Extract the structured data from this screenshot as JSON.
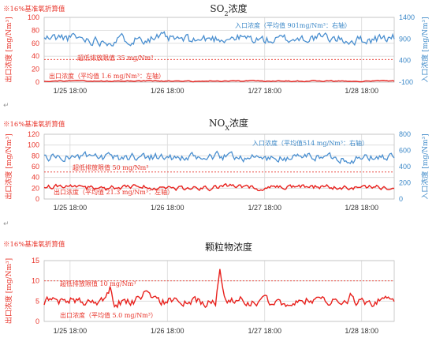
{
  "note_label": "※16%基准氧折算值",
  "return_mark": "↵",
  "colors": {
    "inlet": "#4a8fd0",
    "outlet": "#e8201c",
    "limit": "#e8342a",
    "grid": "#d9d9d9"
  },
  "chart_data": [
    {
      "type": "line",
      "title_main": "SO",
      "title_sub": "2",
      "title_rest": "浓度",
      "x_ticks": [
        "1/25 18:00",
        "1/26 18:00",
        "1/27 18:00",
        "1/28 18:00"
      ],
      "ylabel_left": "出口浓度 [mg/Nm³]",
      "ylabel_right": "入口浓度 [mg/Nm³]",
      "ylim": [
        0,
        100
      ],
      "yticks": [
        0,
        20,
        40,
        60,
        80,
        100
      ],
      "y2lim": [
        -100,
        1400
      ],
      "y2ticks": [
        -100,
        400,
        900,
        1400
      ],
      "grid": true,
      "series": [
        {
          "name": "入口浓度（平均值 901mg/Nm³：右轴）",
          "axis": "right",
          "mean": 901,
          "amp": 120
        },
        {
          "name": "出口浓度（平均值 1.6 mg/Nm³：左轴）",
          "axis": "left",
          "mean": 1.6,
          "amp": 0.8
        }
      ],
      "limit": {
        "label": "超低排放限值 35 mg/Nm³",
        "value": 35
      }
    },
    {
      "type": "line",
      "title_main": "NO",
      "title_sub": "X",
      "title_rest": "浓度",
      "x_ticks": [
        "1/25 18:00",
        "1/26 18:00",
        "1/27 18:00",
        "1/28 18:00"
      ],
      "ylabel_left": "出口浓度 [mg/Nm³]",
      "ylabel_right": "入口浓度 [mg/Nm³]",
      "ylim": [
        0,
        120
      ],
      "yticks": [
        0,
        20,
        40,
        60,
        80,
        100,
        120
      ],
      "y2lim": [
        0,
        800
      ],
      "y2ticks": [
        0,
        200,
        400,
        600,
        800
      ],
      "grid": true,
      "series": [
        {
          "name": "入口浓度（平均值514 mg/Nm³：右轴）",
          "axis": "right",
          "mean": 514,
          "amp": 55
        },
        {
          "name": "出口浓度（平均值 21.3 mg/Nm³：左轴）",
          "axis": "left",
          "mean": 21.3,
          "amp": 5
        }
      ],
      "limit": {
        "label": "超低排放限值 50 mg/Nm³",
        "value": 50
      }
    },
    {
      "type": "line",
      "title_main": "颗粒物浓度",
      "title_sub": "",
      "title_rest": "",
      "x_ticks": [
        "1/25 18:00",
        "1/26 18:00",
        "1/27 18:00",
        "1/28 18:00"
      ],
      "ylabel_left": "出口浓度 [mg/Nm³]",
      "ylim": [
        0,
        15
      ],
      "yticks": [
        0,
        5,
        10,
        15
      ],
      "grid": true,
      "series": [
        {
          "name": "出口浓度（平均值 5.0 mg/Nm³）",
          "axis": "left",
          "mean": 5.0,
          "amp": 1.2
        }
      ],
      "limit": {
        "label": "超低排放限值 10 mg/Nm³",
        "value": 10
      }
    }
  ]
}
